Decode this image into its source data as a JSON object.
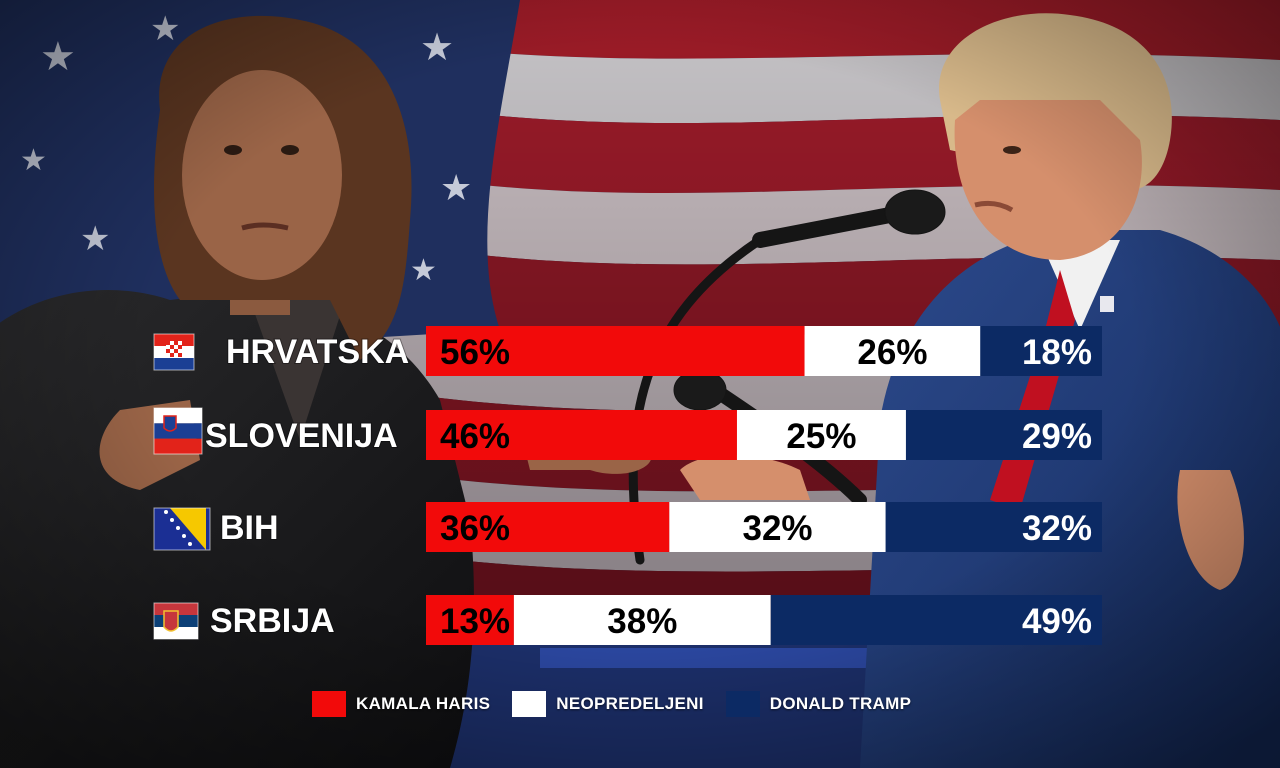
{
  "colors": {
    "harris": "#f20a0a",
    "undecided": "#ffffff",
    "trump": "#0c2a64"
  },
  "legend": {
    "harris": "KAMALA HARIS",
    "undecided": "NEOPREDELJENI",
    "trump": "DONALD TRAMP"
  },
  "chart_data": {
    "type": "bar",
    "orientation": "horizontal-stacked-100",
    "categories": [
      "HRVATSKA",
      "SLOVENIJA",
      "BIH",
      "SRBIJA"
    ],
    "series": [
      {
        "name": "KAMALA HARIS",
        "values": [
          56,
          46,
          36,
          13
        ],
        "labels": [
          "56%",
          "46%",
          "36%",
          "13%"
        ]
      },
      {
        "name": "NEOPREDELJENI",
        "values": [
          26,
          25,
          32,
          38
        ],
        "labels": [
          "26%",
          "25%",
          "32%",
          "38%"
        ]
      },
      {
        "name": "DONALD TRAMP",
        "values": [
          18,
          29,
          32,
          49
        ],
        "labels": [
          "18%",
          "29%",
          "32%",
          "49%"
        ]
      }
    ],
    "flags": [
      "croatia-flag-icon",
      "slovenia-flag-icon",
      "bosnia-flag-icon",
      "serbia-flag-icon"
    ],
    "legend_position": "bottom"
  }
}
